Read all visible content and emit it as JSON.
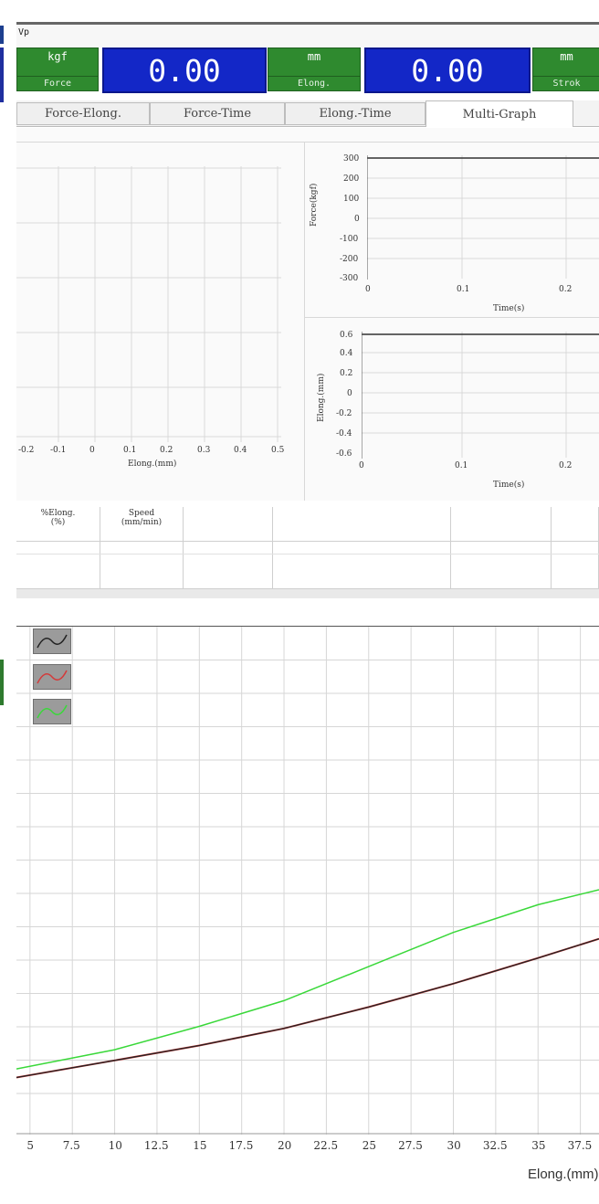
{
  "window": {
    "title": "Vp"
  },
  "readouts": [
    {
      "unit": "kgf",
      "name": "Force",
      "value": "0.00"
    },
    {
      "unit": "mm",
      "name": "Elong.",
      "value": "0.00"
    },
    {
      "unit": "mm",
      "name": "Strok"
    }
  ],
  "tabs": [
    "Force-Elong.",
    "Force-Time",
    "Elong.-Time",
    "Multi-Graph"
  ],
  "active_tab": "Multi-Graph",
  "multi_graph": {
    "main_chart": {
      "xlabel": "Elong.(mm)",
      "x_ticks": [
        "-0.2",
        "-0.1",
        "0",
        "0.1",
        "0.2",
        "0.3",
        "0.4",
        "0.5"
      ]
    },
    "force_time_chart": {
      "ylabel": "Force(kgf)",
      "xlabel": "Time(s)",
      "y_ticks": [
        "300",
        "200",
        "100",
        "0",
        "-100",
        "-200",
        "-300"
      ],
      "x_ticks": [
        "0",
        "0.1",
        "0.2"
      ]
    },
    "elong_time_chart": {
      "ylabel": "Elong.(mm)",
      "xlabel": "Time(s)",
      "y_ticks": [
        "0.6",
        "0.4",
        "0.2",
        "0",
        "-0.2",
        "-0.4",
        "-0.6"
      ],
      "x_ticks": [
        "0",
        "0.1",
        "0.2"
      ]
    }
  },
  "results_table": {
    "headers": [
      "%Elong.\n(%)",
      "Speed\n(mm/min)",
      "",
      "",
      "",
      "",
      ""
    ]
  },
  "legend": [
    {
      "name": "curve-black",
      "color": "#222222"
    },
    {
      "name": "curve-red",
      "color": "#d43a3a"
    },
    {
      "name": "curve-green",
      "color": "#39d839"
    }
  ],
  "chart_data": {
    "type": "line",
    "xlabel": "Elong.(mm)",
    "x_ticks": [
      "5",
      "7.5",
      "10",
      "12.5",
      "15",
      "17.5",
      "20",
      "22.5",
      "25",
      "27.5",
      "30",
      "32.5",
      "35",
      "37.5"
    ],
    "xlim": [
      4.2,
      38.6
    ],
    "series": [
      {
        "color": "#222222",
        "x": [
          4.2,
          10,
          15,
          20,
          25,
          30,
          35,
          38.6
        ],
        "y": [
          0.22,
          0.3,
          0.37,
          0.45,
          0.55,
          0.66,
          0.78,
          0.87
        ]
      },
      {
        "color": "#d43a3a",
        "x": [
          4.2,
          10,
          15,
          20,
          25,
          30,
          35,
          38.6
        ],
        "y": [
          0.22,
          0.3,
          0.37,
          0.45,
          0.55,
          0.66,
          0.78,
          0.87
        ]
      },
      {
        "color": "#39d839",
        "x": [
          4.2,
          10,
          15,
          20,
          25,
          30,
          35,
          38.6
        ],
        "y": [
          0.26,
          0.35,
          0.46,
          0.58,
          0.74,
          0.9,
          1.03,
          1.1
        ]
      }
    ]
  }
}
